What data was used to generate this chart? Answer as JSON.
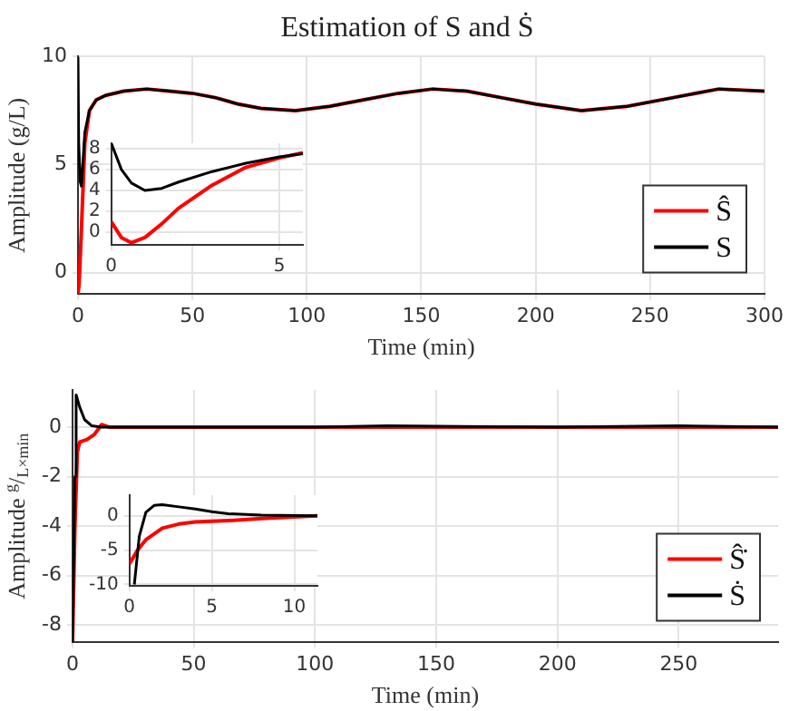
{
  "chart_data": [
    {
      "type": "line",
      "title": "Estimation of S and Ṡ",
      "xlabel": "Time (min)",
      "ylabel": "Amplitude (g/L)",
      "xlim": [
        0,
        300
      ],
      "ylim": [
        -1,
        10
      ],
      "xticks": [
        0,
        50,
        100,
        150,
        200,
        250,
        300
      ],
      "yticks": [
        0,
        5,
        10
      ],
      "grid": true,
      "legend": "bottom right",
      "marker": "none",
      "series": [
        {
          "name": "Ŝ",
          "color": "#ff0000",
          "x": [
            0,
            0.5,
            1.5,
            3,
            5,
            8,
            12,
            20,
            30,
            40,
            50,
            60,
            70,
            80,
            95,
            110,
            125,
            140,
            155,
            170,
            185,
            200,
            220,
            240,
            260,
            280,
            300
          ],
          "values": [
            -1,
            -0.5,
            2,
            6,
            7.5,
            8,
            8.2,
            8.4,
            8.5,
            8.4,
            8.3,
            8.1,
            7.8,
            7.6,
            7.5,
            7.7,
            8,
            8.3,
            8.5,
            8.4,
            8.1,
            7.8,
            7.5,
            7.7,
            8.1,
            8.5,
            8.4
          ]
        },
        {
          "name": "S",
          "color": "#000000",
          "x": [
            0,
            0.3,
            1,
            1.5,
            3,
            5,
            8,
            12,
            20,
            30,
            40,
            50,
            60,
            70,
            80,
            95,
            110,
            125,
            140,
            155,
            170,
            185,
            200,
            220,
            240,
            260,
            280,
            300
          ],
          "values": [
            10,
            6,
            4.2,
            4,
            6.5,
            7.5,
            8,
            8.2,
            8.4,
            8.5,
            8.4,
            8.3,
            8.1,
            7.8,
            7.6,
            7.5,
            7.7,
            8,
            8.3,
            8.5,
            8.4,
            8.1,
            7.8,
            7.5,
            7.7,
            8.1,
            8.5,
            8.4
          ]
        }
      ]
    },
    {
      "type": "line",
      "xlim": [
        0,
        5.7
      ],
      "ylim": [
        -1.2,
        8.5
      ],
      "xticks": [
        0,
        5
      ],
      "yticks": [
        0,
        2,
        4,
        6,
        8
      ],
      "grid": true,
      "marker": "none",
      "series": [
        {
          "color": "#ff0000",
          "x": [
            0,
            0.3,
            0.6,
            1,
            1.5,
            2,
            3,
            4,
            5,
            5.7
          ],
          "values": [
            1,
            -0.5,
            -1,
            -0.5,
            0.8,
            2.3,
            4.5,
            6.2,
            7.1,
            7.6
          ]
        },
        {
          "color": "#000000",
          "x": [
            0,
            0.3,
            0.6,
            1,
            1.5,
            2,
            3,
            4,
            5,
            5.7
          ],
          "values": [
            8.5,
            6,
            4.7,
            4,
            4.2,
            4.8,
            5.8,
            6.6,
            7.2,
            7.5
          ]
        }
      ]
    },
    {
      "type": "line",
      "xlabel": "Time (min)",
      "ylabel": "Amplitude $^{g}$/$_{L×min}$",
      "xlim": [
        0,
        291
      ],
      "ylim": [
        -8.7,
        1.5
      ],
      "xticks": [
        0,
        50,
        100,
        150,
        200,
        250
      ],
      "yticks": [
        -8,
        -6,
        -4,
        -2,
        0
      ],
      "grid": true,
      "legend": "bottom right",
      "marker": "none",
      "series": [
        {
          "name": "Ŝ̇",
          "color": "#ff0000",
          "x": [
            0,
            1,
            2,
            3,
            6,
            9,
            12,
            15,
            50,
            100,
            150,
            200,
            250,
            291
          ],
          "values": [
            -8.7,
            -4,
            -1,
            -0.6,
            -0.5,
            -0.3,
            0.1,
            0,
            0,
            0,
            0,
            0,
            0,
            0
          ]
        },
        {
          "name": "Ṡ",
          "color": "#000000",
          "x": [
            0,
            1,
            1.5,
            3,
            5,
            8,
            12,
            50,
            100,
            130,
            200,
            250,
            291
          ],
          "values": [
            -8.7,
            -2,
            1.3,
            0.8,
            0.3,
            0.05,
            0,
            0,
            0,
            0.05,
            0,
            0.05,
            0
          ]
        }
      ]
    },
    {
      "type": "line",
      "xlim": [
        0,
        11.4
      ],
      "ylim": [
        -10.2,
        3
      ],
      "xticks": [
        0,
        5,
        10
      ],
      "yticks": [
        -10,
        -5,
        0
      ],
      "grid": true,
      "marker": "none",
      "series": [
        {
          "color": "#ff0000",
          "x": [
            0,
            0.5,
            1,
            2,
            3,
            4,
            6,
            8,
            11.4
          ],
          "values": [
            -7,
            -5,
            -3.5,
            -1.8,
            -1.2,
            -0.9,
            -0.7,
            -0.4,
            0
          ]
        },
        {
          "color": "#000000",
          "x": [
            0.3,
            0.6,
            1,
            1.5,
            2,
            3,
            4,
            5,
            6,
            8,
            11.4
          ],
          "values": [
            -10,
            -3,
            0.5,
            1.5,
            1.6,
            1.3,
            1,
            0.6,
            0.3,
            0.1,
            0
          ]
        }
      ]
    }
  ]
}
